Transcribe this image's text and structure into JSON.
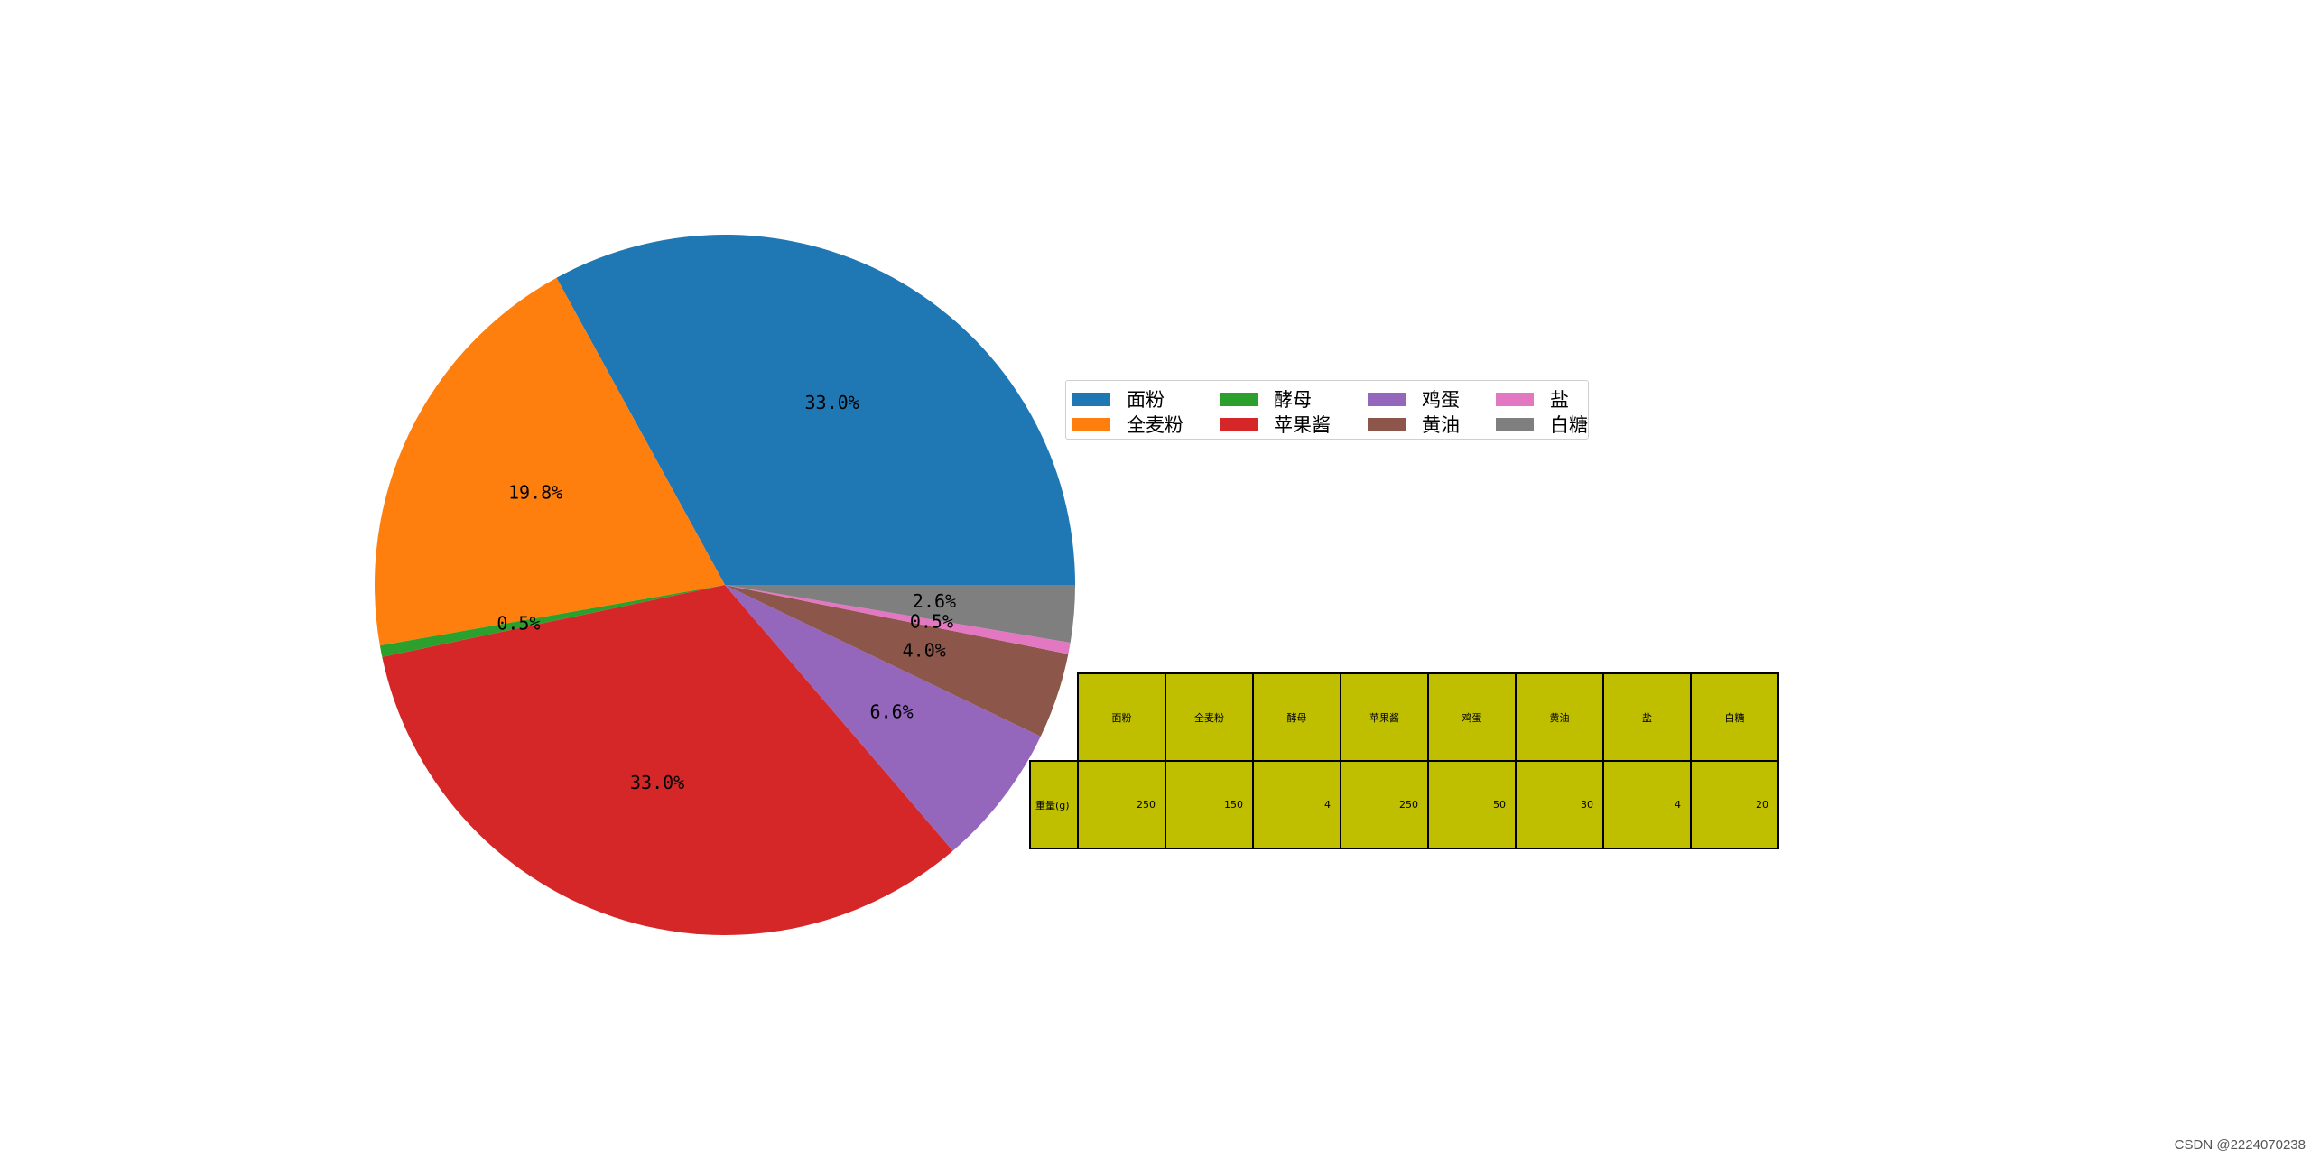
{
  "chart_data": {
    "type": "pie",
    "title": "",
    "categories": [
      "面粉",
      "全麦粉",
      "酵母",
      "苹果酱",
      "鸡蛋",
      "黄油",
      "盐",
      "白糖"
    ],
    "values": [
      250,
      150,
      4,
      250,
      50,
      30,
      4,
      20
    ],
    "percent_labels": [
      "33.0%",
      "19.8%",
      "0.5%",
      "33.0%",
      "6.6%",
      "4.0%",
      "0.5%",
      "2.6%"
    ],
    "colors": [
      "#1f77b4",
      "#ff7f0e",
      "#2ca02c",
      "#d62728",
      "#9467bd",
      "#8c564b",
      "#e377c2",
      "#7f7f7f"
    ],
    "start_angle_deg": 0,
    "direction": "counterclockwise",
    "legend": {
      "columns": 4,
      "placement": "right of pie, upper middle"
    },
    "table": {
      "col_labels": [
        "面粉",
        "全麦粉",
        "酵母",
        "苹果酱",
        "鸡蛋",
        "黄油",
        "盐",
        "白糖"
      ],
      "row_labels": [
        "重量(g)"
      ],
      "cell_values": [
        [
          "250",
          "150",
          "4",
          "250",
          "50",
          "30",
          "4",
          "20"
        ]
      ],
      "cell_color": "#bfbf00"
    }
  },
  "watermark": "CSDN @2224070238"
}
